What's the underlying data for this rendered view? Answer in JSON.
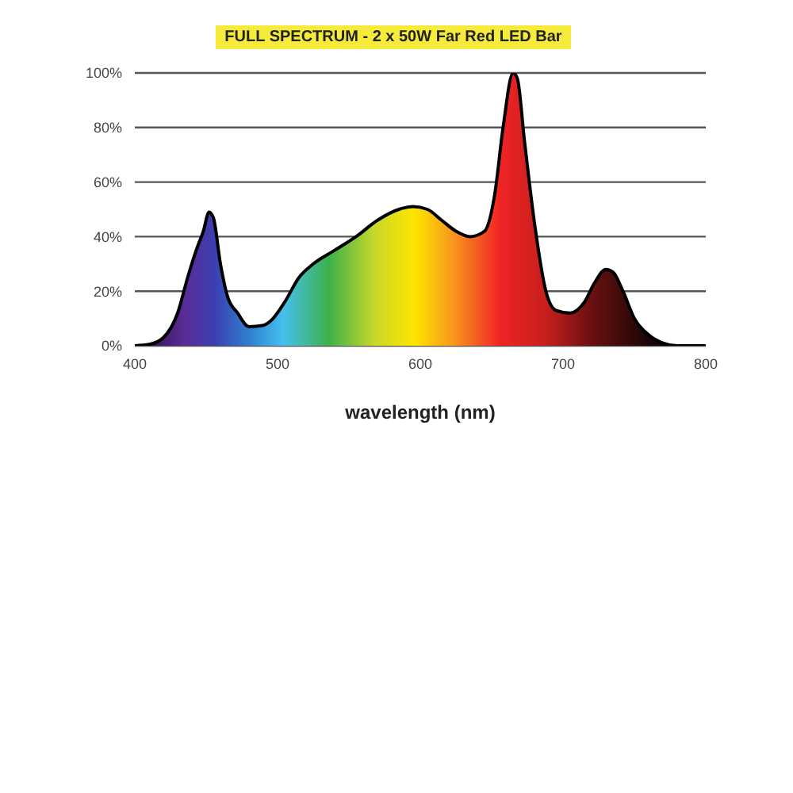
{
  "chart_data": {
    "type": "area",
    "title": "FULL SPECTRUM - 2 x 50W Far Red LED Bar",
    "xlabel": "wavelength (nm)",
    "x": [
      400,
      410,
      420,
      430,
      437,
      443,
      448,
      452,
      455,
      460,
      465,
      472,
      480,
      490,
      495,
      505,
      515,
      525,
      540,
      555,
      570,
      585,
      595,
      605,
      615,
      625,
      635,
      645,
      652,
      658,
      665,
      668,
      673,
      680,
      688,
      695,
      705,
      715,
      722,
      730,
      735,
      742,
      750,
      760,
      770,
      780,
      800
    ],
    "series": [
      {
        "color": "#000000",
        "values": [
          0,
          0.5,
          3,
          12,
          25,
          35,
          42,
          49,
          47,
          30,
          18,
          12,
          7,
          7.5,
          9,
          16,
          25,
          30,
          35,
          40,
          46,
          50,
          51,
          50,
          46,
          42,
          40,
          42,
          55,
          80,
          100,
          98,
          75,
          45,
          20,
          13,
          12,
          16,
          23,
          28,
          27,
          20,
          10,
          4,
          1,
          0,
          0
        ]
      }
    ],
    "xlim": [
      400,
      800
    ],
    "xticks": [
      400,
      500,
      600,
      700,
      800
    ],
    "ylim": [
      0,
      100
    ],
    "yticks": [
      {
        "value": 0,
        "label": "0%"
      },
      {
        "value": 20,
        "label": "20%"
      },
      {
        "value": 40,
        "label": "40%"
      },
      {
        "value": 60,
        "label": "60%"
      },
      {
        "value": 80,
        "label": "80%"
      },
      {
        "value": 100,
        "label": "100%"
      }
    ],
    "grid": "y",
    "legend": false
  }
}
